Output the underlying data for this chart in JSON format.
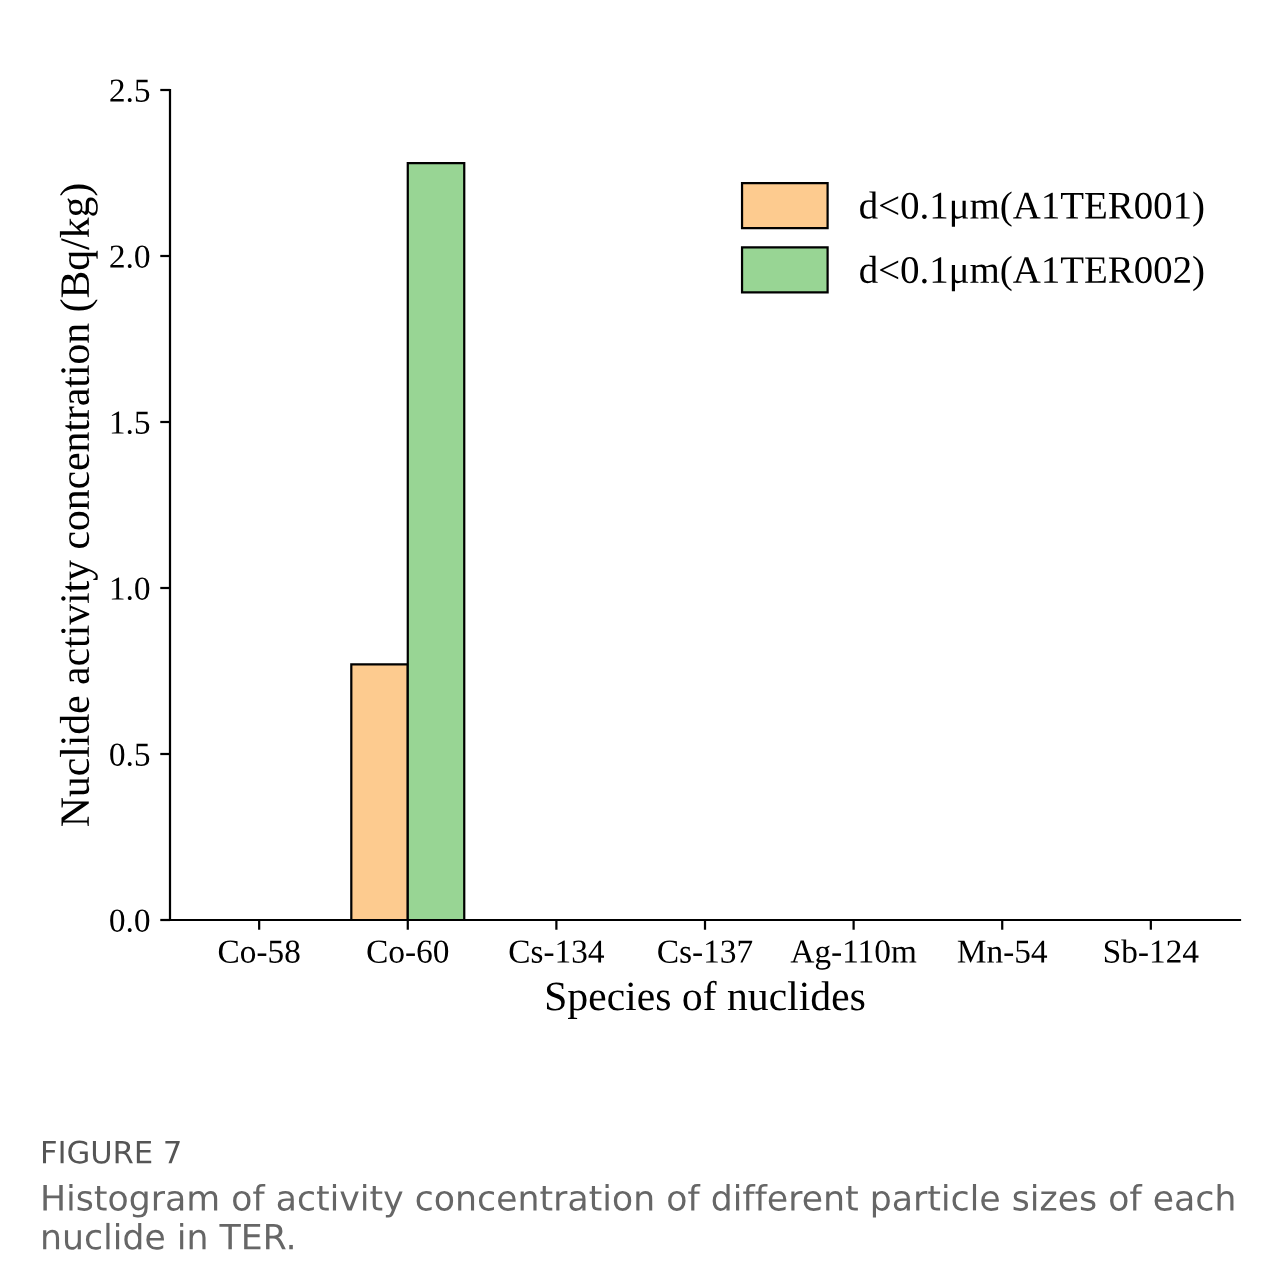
{
  "chart_data": {
    "type": "bar",
    "xlabel": "Species of nuclides",
    "ylabel": "Nuclide activity concentration (Bq/kg)",
    "categories": [
      "Co-58",
      "Co-60",
      "Cs-134",
      "Cs-137",
      "Ag-110m",
      "Mn-54",
      "Sb-124"
    ],
    "series": [
      {
        "name": "d<0.1μm(A1TER001)",
        "color": "#fdcb8f",
        "values": [
          null,
          0.77,
          null,
          null,
          null,
          null,
          null
        ]
      },
      {
        "name": "d<0.1μm(A1TER002)",
        "color": "#98d594",
        "values": [
          null,
          2.28,
          null,
          null,
          null,
          null,
          null
        ]
      }
    ],
    "ylim": [
      0,
      2.5
    ],
    "yticks": [
      {
        "value": 0,
        "label": "0.0"
      },
      {
        "value": 0.5,
        "label": "0.5"
      },
      {
        "value": 1.0,
        "label": "1.0"
      },
      {
        "value": 1.5,
        "label": "1.5"
      },
      {
        "value": 2.0,
        "label": "2.0"
      },
      {
        "value": 2.5,
        "label": "2.5"
      }
    ],
    "grid": false,
    "legend": "top right",
    "annotations": [
      "FIGURE 7",
      "Histogram of activity concentration of different particle sizes of each nuclide in TER."
    ]
  }
}
